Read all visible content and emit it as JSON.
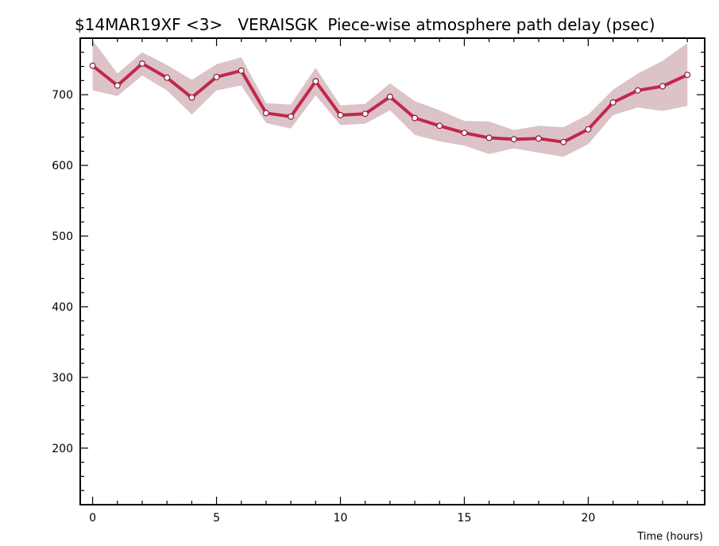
{
  "chart_data": {
    "type": "line",
    "title": "$14MAR19XF <3>   VERAISGK  Piece-wise atmosphere path delay (psec)",
    "xlabel": "Time (hours)",
    "ylabel": "",
    "xlim": [
      -0.5,
      24.7
    ],
    "ylim": [
      120,
      780
    ],
    "x_ticks": [
      0,
      5,
      10,
      15,
      20
    ],
    "x_tick_labels": [
      "0",
      "5",
      "10",
      "15",
      "20"
    ],
    "y_ticks": [
      200,
      300,
      400,
      500,
      600,
      700
    ],
    "y_tick_labels": [
      "200",
      "300",
      "400",
      "500",
      "600",
      "700"
    ],
    "grid": false,
    "legend": "none",
    "series": [
      {
        "x": [
          0,
          1,
          2,
          3,
          4,
          5,
          6,
          7,
          8,
          9,
          10,
          11,
          12,
          13,
          14,
          15,
          16,
          17,
          18,
          19,
          20,
          21,
          22,
          23,
          24
        ],
        "values": [
          741,
          713,
          744,
          724,
          696,
          725,
          734,
          674,
          669,
          719,
          671,
          673,
          697,
          667,
          656,
          646,
          639,
          637,
          638,
          633,
          651,
          689,
          706,
          712,
          728
        ],
        "upper": [
          777,
          730,
          760,
          742,
          721,
          743,
          753,
          688,
          686,
          738,
          685,
          687,
          716,
          691,
          678,
          663,
          662,
          650,
          656,
          654,
          672,
          707,
          730,
          748,
          773
        ],
        "lower": [
          706,
          698,
          727,
          706,
          672,
          706,
          713,
          660,
          652,
          699,
          657,
          659,
          678,
          643,
          634,
          628,
          616,
          624,
          618,
          612,
          630,
          671,
          682,
          677,
          684
        ]
      }
    ],
    "colors": {
      "line": "#c0284a",
      "band": "#dcc3c8",
      "marker_fill": "#ffffff",
      "marker_stroke": "#8c1e36",
      "axis": "#000000"
    }
  }
}
